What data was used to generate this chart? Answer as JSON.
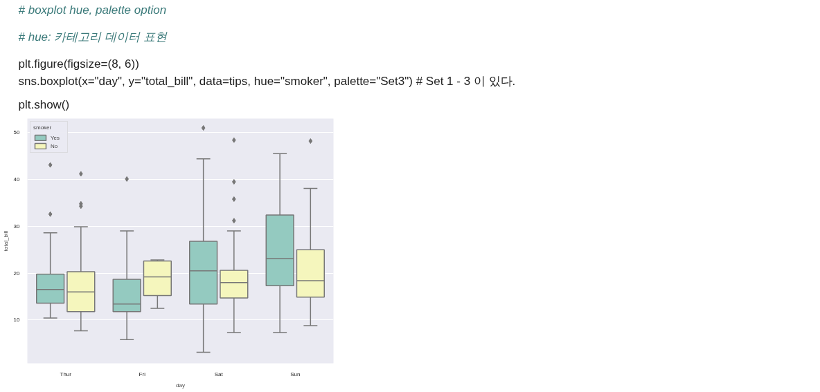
{
  "chart_data": {
    "type": "box",
    "annotations": [
      "# boxplot hue, palette option",
      "# hue: 카테고리 데이터 표현",
      "plt.figure(figsize=(8, 6))",
      "sns.boxplot(x=\"day\", y=\"total_bill\", data=tips, hue=\"smoker\", palette=\"Set3\") # Set 1 - 3 이 있다.",
      "plt.show()"
    ],
    "xlabel": "day",
    "ylabel": "total_bill",
    "legend_title": "smoker",
    "categories": [
      "Thur",
      "Fri",
      "Sat",
      "Sun"
    ],
    "series": [
      {
        "name": "Yes",
        "color": "#94cac0",
        "boxes": [
          {
            "low": 10.4,
            "q1": 13.6,
            "median": 16.5,
            "q3": 19.8,
            "high": 28.6,
            "outliers": [
              43.1,
              32.6
            ]
          },
          {
            "low": 5.8,
            "q1": 11.8,
            "median": 13.4,
            "q3": 18.7,
            "high": 29.0,
            "outliers": [
              40.1
            ]
          },
          {
            "low": 3.1,
            "q1": 13.4,
            "median": 20.5,
            "q3": 26.8,
            "high": 44.4,
            "outliers": [
              51.0
            ]
          },
          {
            "low": 7.3,
            "q1": 17.3,
            "median": 23.1,
            "q3": 32.4,
            "high": 45.5
          }
        ]
      },
      {
        "name": "No",
        "color": "#f5f6bd",
        "boxes": [
          {
            "low": 7.7,
            "q1": 11.8,
            "median": 16.0,
            "q3": 20.3,
            "high": 29.9,
            "outliers": [
              41.2,
              34.8,
              34.3
            ]
          },
          {
            "low": 12.5,
            "q1": 15.2,
            "median": 19.2,
            "q3": 22.6,
            "high": 22.8
          },
          {
            "low": 7.3,
            "q1": 14.7,
            "median": 18.0,
            "q3": 20.6,
            "high": 29.0,
            "outliers": [
              48.4,
              39.5,
              35.8,
              31.2
            ]
          },
          {
            "low": 8.8,
            "q1": 14.9,
            "median": 18.4,
            "q3": 25.0,
            "high": 38.1,
            "outliers": [
              48.2
            ]
          }
        ]
      }
    ],
    "ylim": [
      0.75,
      53
    ],
    "yticks": [
      10,
      20,
      30,
      40,
      50
    ],
    "grid": "y",
    "legend": "top left"
  }
}
